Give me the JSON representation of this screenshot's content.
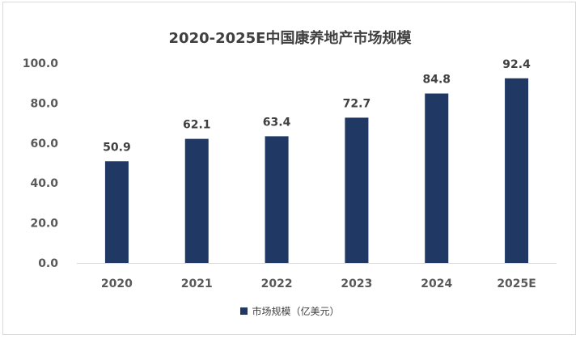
{
  "chart_data": {
    "type": "bar",
    "title": "2020-2025E中国康养地产市场规模",
    "categories": [
      "2020",
      "2021",
      "2022",
      "2023",
      "2024",
      "2025E"
    ],
    "series": [
      {
        "name": "市场规模（亿美元）",
        "values": [
          50.9,
          62.1,
          63.4,
          72.7,
          84.8,
          92.4
        ],
        "color": "#1f3864"
      }
    ],
    "data_labels": [
      "50.9",
      "62.1",
      "63.4",
      "72.7",
      "84.8",
      "92.4"
    ],
    "y_ticks": [
      "0.0",
      "20.0",
      "40.0",
      "60.0",
      "80.0",
      "100.0"
    ],
    "ylim": [
      0,
      100
    ],
    "grid": false,
    "legend_position": "bottom"
  }
}
